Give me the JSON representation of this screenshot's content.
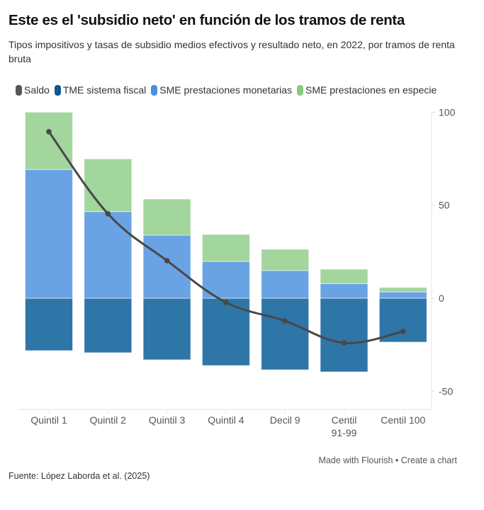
{
  "chart_data": {
    "type": "bar",
    "stacked": true,
    "title": "Este es el 'subsidio neto' en función de los tramos de renta",
    "subtitle": "Tipos impositivos y tasas de subsidio medios efectivos y resultado neto, en 2022, por tramos de renta bruta",
    "categories": [
      "Quintil 1",
      "Quintil 2",
      "Quintil 3",
      "Quintil 4",
      "Decil 9",
      "Centil 91-99",
      "Centil 100"
    ],
    "category_lines": [
      [
        "Quintil 1"
      ],
      [
        "Quintil 2"
      ],
      [
        "Quintil 3"
      ],
      [
        "Quintil 4"
      ],
      [
        "Decil 9"
      ],
      [
        "Centil",
        "91-99"
      ],
      [
        "Centil 100"
      ]
    ],
    "series": [
      {
        "name": "TME sistema fiscal",
        "type": "bar",
        "color": "#2e75a8",
        "legend_color": "#0b5797",
        "values": [
          -28.2,
          -29.3,
          -33.1,
          -36.2,
          -38.5,
          -39.6,
          -23.6
        ]
      },
      {
        "name": "SME prestaciones monetarias",
        "type": "bar",
        "color": "#6aa3e4",
        "legend_color": "#4a90e2",
        "values": [
          69.2,
          46.6,
          33.9,
          19.8,
          14.9,
          7.9,
          3.4
        ]
      },
      {
        "name": "SME prestaciones en especie",
        "type": "bar",
        "color": "#a2d69c",
        "legend_color": "#86cc80",
        "values": [
          30.8,
          28.3,
          19.4,
          14.5,
          11.4,
          7.7,
          2.4
        ]
      },
      {
        "name": "Saldo",
        "type": "line",
        "color": "#484848",
        "legend_color": "#555555",
        "values": [
          89.5,
          45.4,
          20.2,
          -2.2,
          -12.2,
          -24.0,
          -17.9
        ]
      }
    ],
    "legend_order": [
      "Saldo",
      "TME sistema fiscal",
      "SME prestaciones monetarias",
      "SME prestaciones en especie"
    ],
    "yaxis": {
      "position": "right",
      "ticks": [
        100,
        50,
        0,
        -50
      ],
      "ylim": [
        -60,
        100
      ]
    },
    "xlabel": "",
    "ylabel": "",
    "grid": false,
    "legend_position": "top-left"
  },
  "footer": {
    "made_with": "Made with Flourish",
    "separator": "•",
    "create": "Create a chart",
    "source": "Fuente: López Laborda et al. (2025)"
  }
}
